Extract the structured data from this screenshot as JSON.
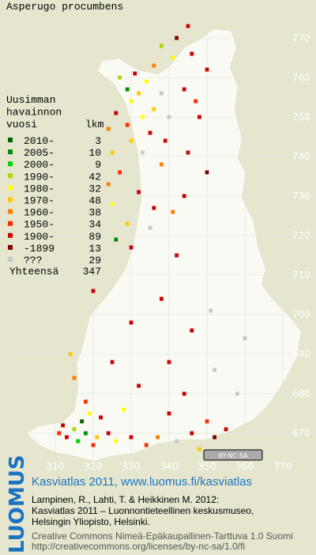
{
  "title": "Asperugo procumbens",
  "legend": {
    "header": [
      "Uusimman",
      "havainnon",
      "vuosi"
    ],
    "count_header": "lkm",
    "entries": [
      {
        "label": "2010-",
        "count": 3,
        "color": "#006400"
      },
      {
        "label": "2005-",
        "count": 10,
        "color": "#008c00"
      },
      {
        "label": "2000-",
        "count": 9,
        "color": "#00d000"
      },
      {
        "label": "1990-",
        "count": 42,
        "color": "#a8d800"
      },
      {
        "label": "1980-",
        "count": 32,
        "color": "#ffff00"
      },
      {
        "label": "1970-",
        "count": 48,
        "color": "#ffc800"
      },
      {
        "label": "1960-",
        "count": 38,
        "color": "#ff8000"
      },
      {
        "label": "1950-",
        "count": 34,
        "color": "#ff2a00"
      },
      {
        "label": "1900-",
        "count": 89,
        "color": "#cc0000"
      },
      {
        "label": "-1899",
        "count": 13,
        "color": "#800000"
      },
      {
        "label": "???",
        "count": 29,
        "color": "#c8c8c8"
      }
    ],
    "total_label": "Yhteensä",
    "total": 347
  },
  "grid": {
    "y_labels": [
      770,
      760,
      750,
      740,
      730,
      720,
      710,
      700,
      690,
      680,
      670
    ],
    "x_labels": [
      310,
      320,
      330,
      340,
      350,
      360,
      370
    ]
  },
  "points": [
    [
      345,
      773,
      8
    ],
    [
      342,
      770,
      9
    ],
    [
      338,
      768,
      3
    ],
    [
      346,
      766,
      8
    ],
    [
      341,
      765,
      4
    ],
    [
      336,
      763,
      6
    ],
    [
      350,
      762,
      8
    ],
    [
      331,
      761,
      8
    ],
    [
      327,
      760,
      3
    ],
    [
      334,
      759,
      4
    ],
    [
      329,
      757,
      1
    ],
    [
      332,
      756,
      5
    ],
    [
      338,
      756,
      10
    ],
    [
      344,
      757,
      8
    ],
    [
      347,
      754,
      7
    ],
    [
      330,
      754,
      4
    ],
    [
      336,
      752,
      5
    ],
    [
      326,
      751,
      8
    ],
    [
      333,
      750,
      4
    ],
    [
      340,
      750,
      10
    ],
    [
      348,
      750,
      8
    ],
    [
      329,
      748,
      7
    ],
    [
      335,
      746,
      8
    ],
    [
      324,
      747,
      6
    ],
    [
      330,
      744,
      5
    ],
    [
      339,
      744,
      8
    ],
    [
      325,
      741,
      5
    ],
    [
      333,
      741,
      10
    ],
    [
      345,
      741,
      8
    ],
    [
      338,
      738,
      6
    ],
    [
      327,
      736,
      7
    ],
    [
      350,
      736,
      9
    ],
    [
      324,
      733,
      6
    ],
    [
      332,
      731,
      8
    ],
    [
      344,
      730,
      8
    ],
    [
      325,
      728,
      4
    ],
    [
      336,
      727,
      8
    ],
    [
      341,
      726,
      6
    ],
    [
      329,
      723,
      5
    ],
    [
      335,
      722,
      10
    ],
    [
      326,
      719,
      1
    ],
    [
      330,
      717,
      8
    ],
    [
      342,
      715,
      8
    ],
    [
      320,
      706,
      8
    ],
    [
      338,
      704,
      8
    ],
    [
      351,
      701,
      10
    ],
    [
      330,
      698,
      8
    ],
    [
      346,
      696,
      8
    ],
    [
      360,
      694,
      10
    ],
    [
      314,
      690,
      5
    ],
    [
      325,
      688,
      8
    ],
    [
      340,
      688,
      8
    ],
    [
      352,
      686,
      10
    ],
    [
      315,
      684,
      6
    ],
    [
      332,
      682,
      8
    ],
    [
      344,
      680,
      8
    ],
    [
      358,
      680,
      10
    ],
    [
      318,
      678,
      7
    ],
    [
      328,
      676,
      4
    ],
    [
      340,
      675,
      8
    ],
    [
      350,
      673,
      7
    ],
    [
      312,
      672,
      8
    ],
    [
      315,
      671,
      3
    ],
    [
      318,
      670,
      1
    ],
    [
      321,
      669,
      5
    ],
    [
      313,
      669,
      8
    ],
    [
      316,
      668,
      2
    ],
    [
      320,
      667,
      7
    ],
    [
      324,
      670,
      8
    ],
    [
      326,
      668,
      4
    ],
    [
      330,
      669,
      8
    ],
    [
      334,
      667,
      7
    ],
    [
      337,
      669,
      6
    ],
    [
      342,
      668,
      10
    ],
    [
      346,
      670,
      8
    ],
    [
      352,
      669,
      9
    ],
    [
      355,
      671,
      8
    ],
    [
      348,
      666,
      5
    ],
    [
      317,
      673,
      0
    ],
    [
      319,
      675,
      4
    ],
    [
      322,
      674,
      8
    ],
    [
      311,
      670,
      7
    ]
  ],
  "badge": "BY-NC-SA",
  "footer": {
    "org": "LUOMUS",
    "atlas": "Kasviatlas 2011, www.luomus.fi/kasviatlas",
    "citation": [
      "Lampinen, R., Lahti, T. & Heikkinen M. 2012:",
      "Kasviatlas 2011 – Luonnontieteellinen keskusmuseo,",
      "Helsingin Yliopisto, Helsinki."
    ],
    "license": [
      "Creative Commons Nimeä-Epäkaupallinen-Tarttuva 1.0 Suomi",
      "http://creativecommons.org/licenses/by-nc-sa/1.0/fi"
    ]
  }
}
